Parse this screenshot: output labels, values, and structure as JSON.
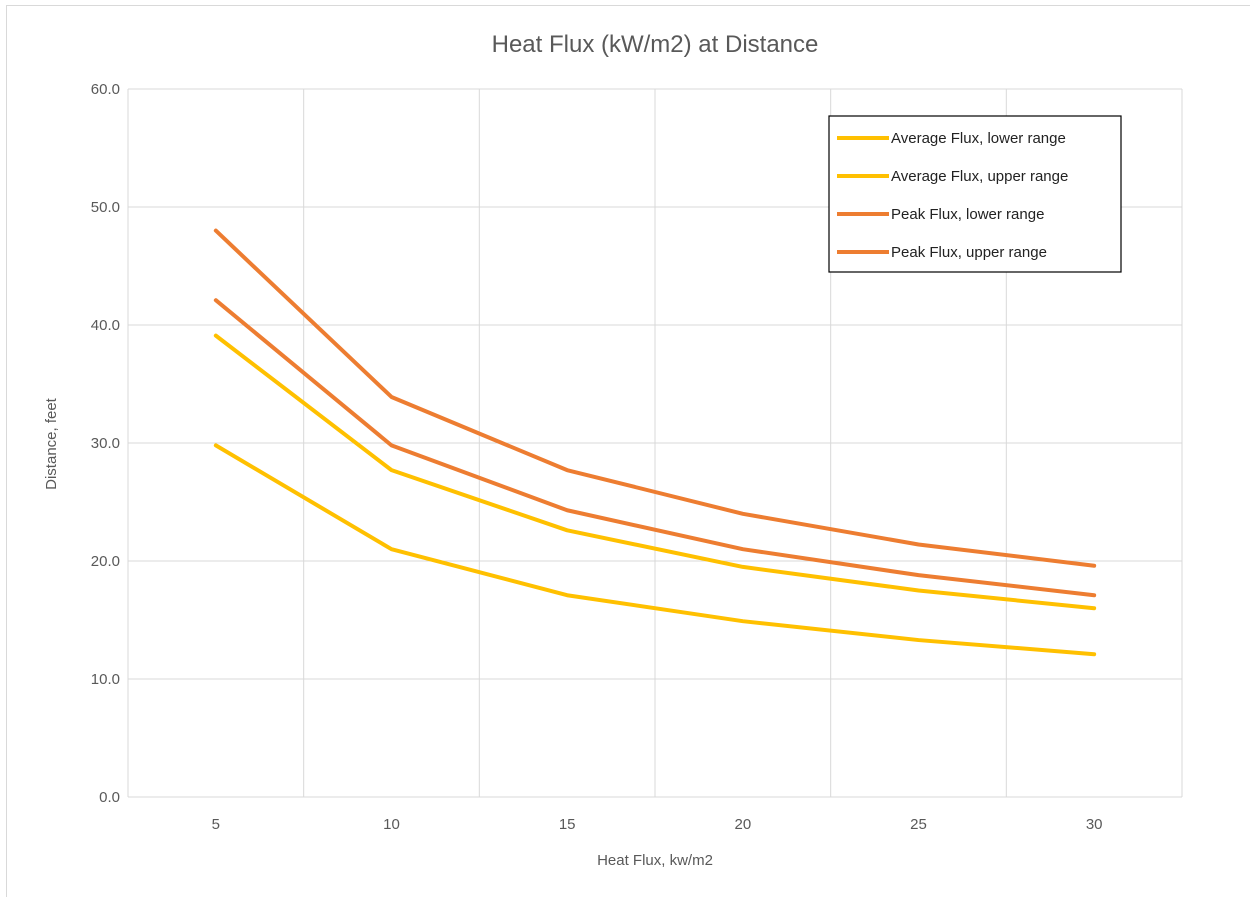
{
  "chart_data": {
    "type": "line",
    "title": "Heat Flux (kW/m2) at Distance",
    "xlabel": "Heat Flux, kw/m2",
    "ylabel": "Distance, feet",
    "categories": [
      "5",
      "10",
      "15",
      "20",
      "25",
      "30"
    ],
    "ylim": [
      0,
      60
    ],
    "yticks": [
      "0.0",
      "10.0",
      "20.0",
      "30.0",
      "40.0",
      "50.0",
      "60.0"
    ],
    "grid": true,
    "legend_position": "top-right",
    "series": [
      {
        "name": "Average Flux, lower range",
        "color": "#FFC000",
        "values": [
          29.8,
          21.0,
          17.1,
          14.9,
          13.3,
          12.1
        ]
      },
      {
        "name": "Average Flux, upper range",
        "color": "#FFC000",
        "values": [
          39.1,
          27.7,
          22.6,
          19.5,
          17.5,
          16.0
        ]
      },
      {
        "name": "Peak Flux, lower range",
        "color": "#ED7D31",
        "values": [
          42.1,
          29.8,
          24.3,
          21.0,
          18.8,
          17.1
        ]
      },
      {
        "name": "Peak Flux, upper range",
        "color": "#ED7D31",
        "values": [
          48.0,
          33.9,
          27.7,
          24.0,
          21.4,
          19.6
        ]
      }
    ]
  }
}
